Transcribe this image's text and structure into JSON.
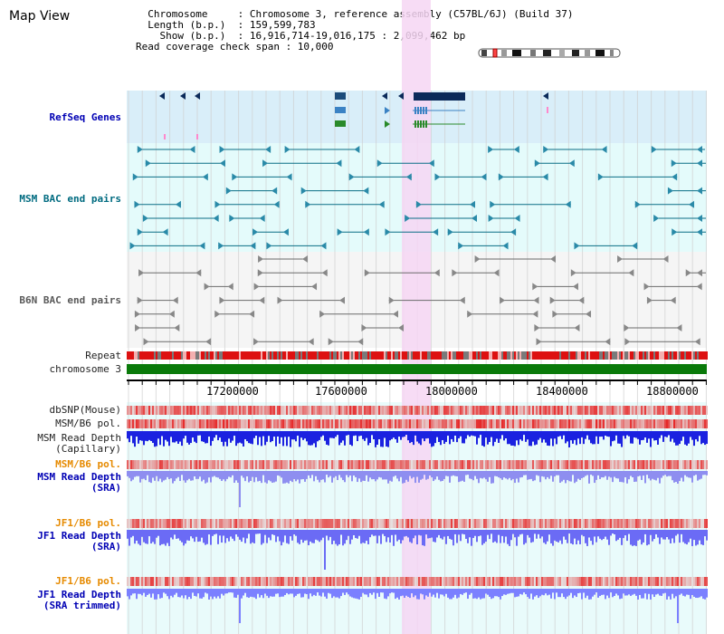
{
  "header": {
    "title": "Map View",
    "info_lines": [
      "  Chromosome     : Chromosome 3, reference assembly (C57BL/6J) (Build 37)",
      "  Length (b.p.)  : 159,599,783",
      "    Show (b.p.)  : 16,916,714-19,016,175 : 2,099,462 bp",
      "Read coverage check span : 10,000"
    ]
  },
  "tracks": {
    "refseq": "RefSeq Genes",
    "msm_bac": "MSM BAC end pairs",
    "b6n_bac": "B6N BAC end pairs",
    "repeat": "Repeat",
    "chromosome": "chromosome 3",
    "dbsnp": "dbSNP(Mouse)",
    "msm_b6_pol": "MSM/B6 pol.",
    "msm_read_depth_cap_1": "MSM Read Depth",
    "msm_read_depth_cap_2": "(Capillary)",
    "msm_b6_pol_2": "MSM/B6 pol.",
    "msm_read_depth_sra_1": "MSM Read Depth",
    "msm_read_depth_sra_2": "(SRA)",
    "jf1_b6_pol": "JF1/B6 pol.",
    "jf1_read_depth_sra_1": "JF1 Read Depth",
    "jf1_read_depth_sra_2": "(SRA)",
    "jf1_b6_pol_2": "JF1/B6 pol.",
    "jf1_read_depth_trim_1": "JF1 Read Depth",
    "jf1_read_depth_trim_2": "(SRA trimmed)"
  },
  "axis": {
    "ticks": [
      "17200000",
      "17600000",
      "18000000",
      "18400000",
      "18800000"
    ]
  },
  "colors": {
    "refseq_bg": "#d9eef9",
    "bac_bg": "#e4fbfb",
    "highlight": "#f6d6f3",
    "teal": "#0a6e86",
    "gray": "#6b6b6b",
    "repeat_red": "#dd1111",
    "chrom_green": "#0a7a0a",
    "depth_blue": "#1b22e0",
    "depth_light": "#7b80ff"
  }
}
